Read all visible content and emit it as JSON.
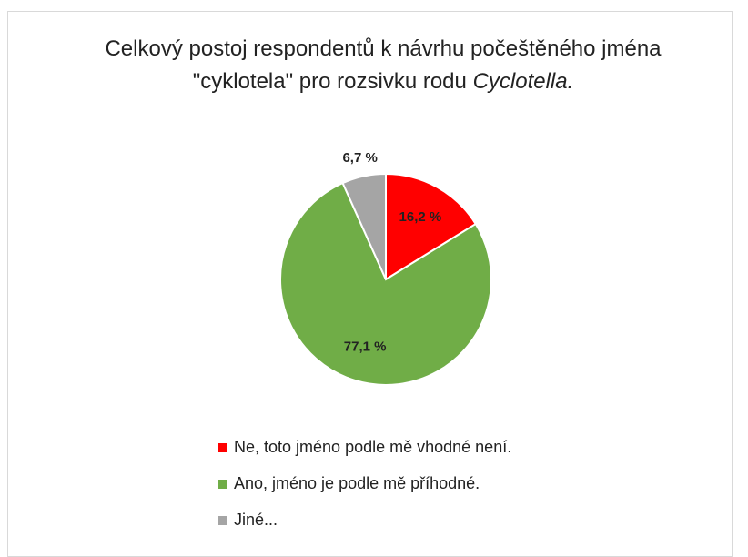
{
  "chart_data": {
    "type": "pie",
    "title": "Celkový postoj respondentů k návrhu počeštěného jména \"cyklotela\" pro rozsivku rodu",
    "title_emphasis": "Cyclotella.",
    "categories": [
      "Ne, toto jméno podle mě vhodné není.",
      "Ano, jméno je podle mě příhodné.",
      "Jiné..."
    ],
    "values": [
      16.2,
      77.1,
      6.7
    ],
    "value_labels": [
      "16,2 %",
      "77,1 %",
      "6,7 %"
    ],
    "colors": [
      "#ff0000",
      "#70ad47",
      "#a5a5a5"
    ]
  }
}
